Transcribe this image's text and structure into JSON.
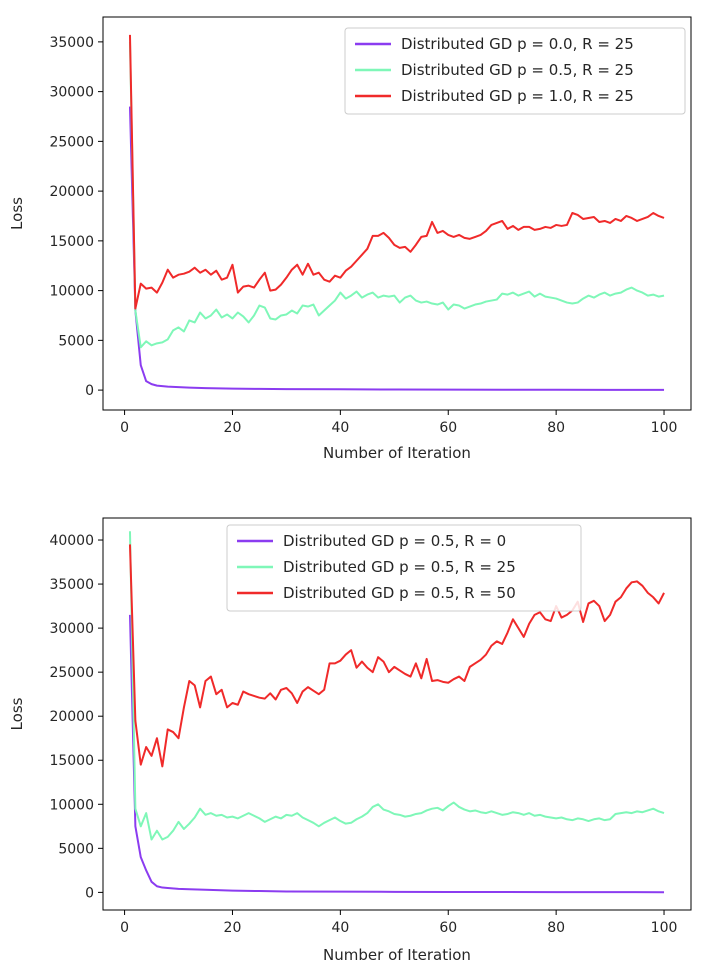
{
  "chart_data": [
    {
      "type": "line",
      "xlabel": "Number of Iteration",
      "ylabel": "Loss",
      "xlim": [
        -4,
        105
      ],
      "ylim": [
        -2000,
        37500
      ],
      "xticks": [
        0,
        20,
        40,
        60,
        80,
        100
      ],
      "yticks": [
        0,
        5000,
        10000,
        15000,
        20000,
        25000,
        30000,
        35000
      ],
      "grid": false,
      "legend": "top-right",
      "series": [
        {
          "name": "Distributed GD p = 0.0, R = 25",
          "color": "#8b3cf0",
          "x": [
            1,
            2,
            3,
            4,
            5,
            6,
            8,
            10,
            12,
            15,
            20,
            25,
            30,
            40,
            50,
            60,
            70,
            80,
            90,
            100
          ],
          "y": [
            28500,
            8000,
            2500,
            900,
            600,
            450,
            350,
            300,
            250,
            200,
            150,
            120,
            100,
            80,
            60,
            50,
            40,
            30,
            25,
            20
          ]
        },
        {
          "name": "Distributed GD p = 0.5, R = 25",
          "color": "#7ff7b8",
          "x": [
            1,
            2,
            3,
            4,
            5,
            6,
            7,
            8,
            9,
            10,
            11,
            12,
            13,
            14,
            15,
            16,
            17,
            18,
            19,
            20,
            21,
            22,
            23,
            24,
            25,
            26,
            27,
            28,
            29,
            30,
            31,
            32,
            33,
            34,
            35,
            36,
            37,
            38,
            39,
            40,
            41,
            42,
            43,
            44,
            45,
            46,
            47,
            48,
            49,
            50,
            51,
            52,
            53,
            54,
            55,
            56,
            57,
            58,
            59,
            60,
            61,
            62,
            63,
            64,
            65,
            66,
            67,
            68,
            69,
            70,
            71,
            72,
            73,
            74,
            75,
            76,
            77,
            78,
            79,
            80,
            81,
            82,
            83,
            84,
            85,
            86,
            87,
            88,
            89,
            90,
            91,
            92,
            93,
            94,
            95,
            96,
            97,
            98,
            99,
            100
          ],
          "y": [
            35000,
            8000,
            4300,
            4900,
            4500,
            4700,
            4800,
            5100,
            6000,
            6300,
            5900,
            7000,
            6800,
            7800,
            7200,
            7500,
            8100,
            7300,
            7600,
            7200,
            7800,
            7400,
            6800,
            7500,
            8500,
            8300,
            7200,
            7100,
            7500,
            7600,
            8000,
            7700,
            8500,
            8400,
            8600,
            7500,
            8000,
            8500,
            9000,
            9800,
            9200,
            9500,
            9900,
            9300,
            9600,
            9800,
            9300,
            9500,
            9400,
            9500,
            8800,
            9300,
            9500,
            9000,
            8800,
            8900,
            8700,
            8600,
            8800,
            8100,
            8600,
            8500,
            8200,
            8400,
            8600,
            8700,
            8900,
            9000,
            9100,
            9700,
            9600,
            9800,
            9500,
            9700,
            9900,
            9400,
            9700,
            9400,
            9300,
            9200,
            9000,
            8800,
            8700,
            8800,
            9200,
            9500,
            9300,
            9600,
            9800,
            9500,
            9700,
            9800,
            10100,
            10300,
            10000,
            9800,
            9500,
            9600,
            9400,
            9500
          ]
        },
        {
          "name": "Distributed GD p = 1.0, R = 25",
          "color": "#f02a2a",
          "x": [
            1,
            2,
            3,
            4,
            5,
            6,
            7,
            8,
            9,
            10,
            11,
            12,
            13,
            14,
            15,
            16,
            17,
            18,
            19,
            20,
            21,
            22,
            23,
            24,
            25,
            26,
            27,
            28,
            29,
            30,
            31,
            32,
            33,
            34,
            35,
            36,
            37,
            38,
            39,
            40,
            41,
            42,
            43,
            44,
            45,
            46,
            47,
            48,
            49,
            50,
            51,
            52,
            53,
            54,
            55,
            56,
            57,
            58,
            59,
            60,
            61,
            62,
            63,
            64,
            65,
            66,
            67,
            68,
            69,
            70,
            71,
            72,
            73,
            74,
            75,
            76,
            77,
            78,
            79,
            80,
            81,
            82,
            83,
            84,
            85,
            86,
            87,
            88,
            89,
            90,
            91,
            92,
            93,
            94,
            95,
            96,
            97,
            98,
            99,
            100
          ],
          "y": [
            35700,
            8200,
            10700,
            10200,
            10300,
            9800,
            10800,
            12100,
            11300,
            11600,
            11700,
            11900,
            12300,
            11800,
            12100,
            11600,
            12000,
            11100,
            11300,
            12600,
            9800,
            10400,
            10500,
            10300,
            11100,
            11800,
            10000,
            10100,
            10600,
            11300,
            12100,
            12600,
            11600,
            12700,
            11600,
            11800,
            11100,
            10900,
            11500,
            11300,
            12000,
            12400,
            13000,
            13600,
            14200,
            15500,
            15500,
            15800,
            15300,
            14600,
            14300,
            14400,
            13900,
            14600,
            15400,
            15500,
            16900,
            15800,
            16000,
            15600,
            15400,
            15600,
            15300,
            15200,
            15400,
            15600,
            16000,
            16600,
            16800,
            17000,
            16200,
            16500,
            16100,
            16400,
            16400,
            16100,
            16200,
            16400,
            16300,
            16600,
            16500,
            16600,
            17800,
            17600,
            17200,
            17300,
            17400,
            16900,
            17000,
            16800,
            17200,
            17000,
            17500,
            17300,
            17000,
            17200,
            17400,
            17800,
            17500,
            17300
          ]
        }
      ]
    },
    {
      "type": "line",
      "xlabel": "Number of Iteration",
      "ylabel": "Loss",
      "xlim": [
        -4,
        105
      ],
      "ylim": [
        -2000,
        42500
      ],
      "xticks": [
        0,
        20,
        40,
        60,
        80,
        100
      ],
      "yticks": [
        0,
        5000,
        10000,
        15000,
        20000,
        25000,
        30000,
        35000,
        40000
      ],
      "grid": false,
      "legend": "top-center",
      "series": [
        {
          "name": "Distributed GD p = 0.5, R = 0",
          "color": "#8b3cf0",
          "x": [
            1,
            2,
            3,
            4,
            5,
            6,
            7,
            8,
            10,
            12,
            15,
            20,
            25,
            30,
            40,
            50,
            60,
            70,
            80,
            90,
            100
          ],
          "y": [
            31500,
            7500,
            4000,
            2500,
            1200,
            700,
            550,
            500,
            400,
            350,
            300,
            200,
            150,
            100,
            80,
            60,
            50,
            40,
            30,
            25,
            20
          ]
        },
        {
          "name": "Distributed GD p = 0.5, R = 25",
          "color": "#7ff7b8",
          "x": [
            1,
            2,
            3,
            4,
            5,
            6,
            7,
            8,
            9,
            10,
            11,
            12,
            13,
            14,
            15,
            16,
            17,
            18,
            19,
            20,
            21,
            22,
            23,
            24,
            25,
            26,
            27,
            28,
            29,
            30,
            31,
            32,
            33,
            34,
            35,
            36,
            37,
            38,
            39,
            40,
            41,
            42,
            43,
            44,
            45,
            46,
            47,
            48,
            49,
            50,
            51,
            52,
            53,
            54,
            55,
            56,
            57,
            58,
            59,
            60,
            61,
            62,
            63,
            64,
            65,
            66,
            67,
            68,
            69,
            70,
            71,
            72,
            73,
            74,
            75,
            76,
            77,
            78,
            79,
            80,
            81,
            82,
            83,
            84,
            85,
            86,
            87,
            88,
            89,
            90,
            91,
            92,
            93,
            94,
            95,
            96,
            97,
            98,
            99,
            100
          ],
          "y": [
            41000,
            9500,
            7500,
            9000,
            6000,
            7000,
            6000,
            6300,
            7000,
            8000,
            7200,
            7800,
            8500,
            9500,
            8800,
            9000,
            8700,
            8800,
            8500,
            8600,
            8400,
            8700,
            9000,
            8700,
            8400,
            8000,
            8300,
            8600,
            8400,
            8800,
            8700,
            9000,
            8500,
            8200,
            7900,
            7500,
            7900,
            8200,
            8500,
            8100,
            7800,
            7900,
            8300,
            8600,
            9000,
            9700,
            10000,
            9400,
            9200,
            8900,
            8800,
            8600,
            8700,
            8900,
            9000,
            9300,
            9500,
            9600,
            9300,
            9800,
            10200,
            9700,
            9400,
            9200,
            9300,
            9100,
            9000,
            9200,
            9000,
            8800,
            8900,
            9100,
            9000,
            8800,
            9000,
            8700,
            8800,
            8600,
            8500,
            8400,
            8500,
            8300,
            8200,
            8400,
            8300,
            8100,
            8300,
            8400,
            8200,
            8300,
            8900,
            9000,
            9100,
            9000,
            9200,
            9100,
            9300,
            9500,
            9200,
            9000
          ]
        },
        {
          "name": "Distributed GD p = 0.5, R = 50",
          "color": "#f02a2a",
          "x": [
            1,
            2,
            3,
            4,
            5,
            6,
            7,
            8,
            9,
            10,
            11,
            12,
            13,
            14,
            15,
            16,
            17,
            18,
            19,
            20,
            21,
            22,
            23,
            24,
            25,
            26,
            27,
            28,
            29,
            30,
            31,
            32,
            33,
            34,
            35,
            36,
            37,
            38,
            39,
            40,
            41,
            42,
            43,
            44,
            45,
            46,
            47,
            48,
            49,
            50,
            51,
            52,
            53,
            54,
            55,
            56,
            57,
            58,
            59,
            60,
            61,
            62,
            63,
            64,
            65,
            66,
            67,
            68,
            69,
            70,
            71,
            72,
            73,
            74,
            75,
            76,
            77,
            78,
            79,
            80,
            81,
            82,
            83,
            84,
            85,
            86,
            87,
            88,
            89,
            90,
            91,
            92,
            93,
            94,
            95,
            96,
            97,
            98,
            99,
            100
          ],
          "y": [
            39500,
            19500,
            14500,
            16500,
            15500,
            17500,
            14300,
            18500,
            18200,
            17500,
            21000,
            24000,
            23500,
            21000,
            24000,
            24500,
            22500,
            23000,
            21000,
            21500,
            21300,
            22800,
            22500,
            22300,
            22100,
            22000,
            22600,
            21900,
            23000,
            23200,
            22600,
            21500,
            22800,
            23300,
            22900,
            22500,
            23000,
            26000,
            26000,
            26300,
            27000,
            27500,
            25500,
            26200,
            25500,
            25000,
            26700,
            26200,
            25000,
            25600,
            25200,
            24800,
            24500,
            26000,
            24300,
            26500,
            24000,
            24100,
            23900,
            23800,
            24200,
            24500,
            24000,
            25600,
            26000,
            26400,
            27000,
            28000,
            28500,
            28200,
            29500,
            31000,
            30000,
            29000,
            30500,
            31500,
            31800,
            31000,
            30800,
            32500,
            31200,
            31500,
            32000,
            33000,
            30700,
            32800,
            33100,
            32500,
            30800,
            31500,
            33000,
            33500,
            34500,
            35200,
            35300,
            34800,
            34000,
            33500,
            32800,
            34000
          ]
        }
      ]
    }
  ]
}
